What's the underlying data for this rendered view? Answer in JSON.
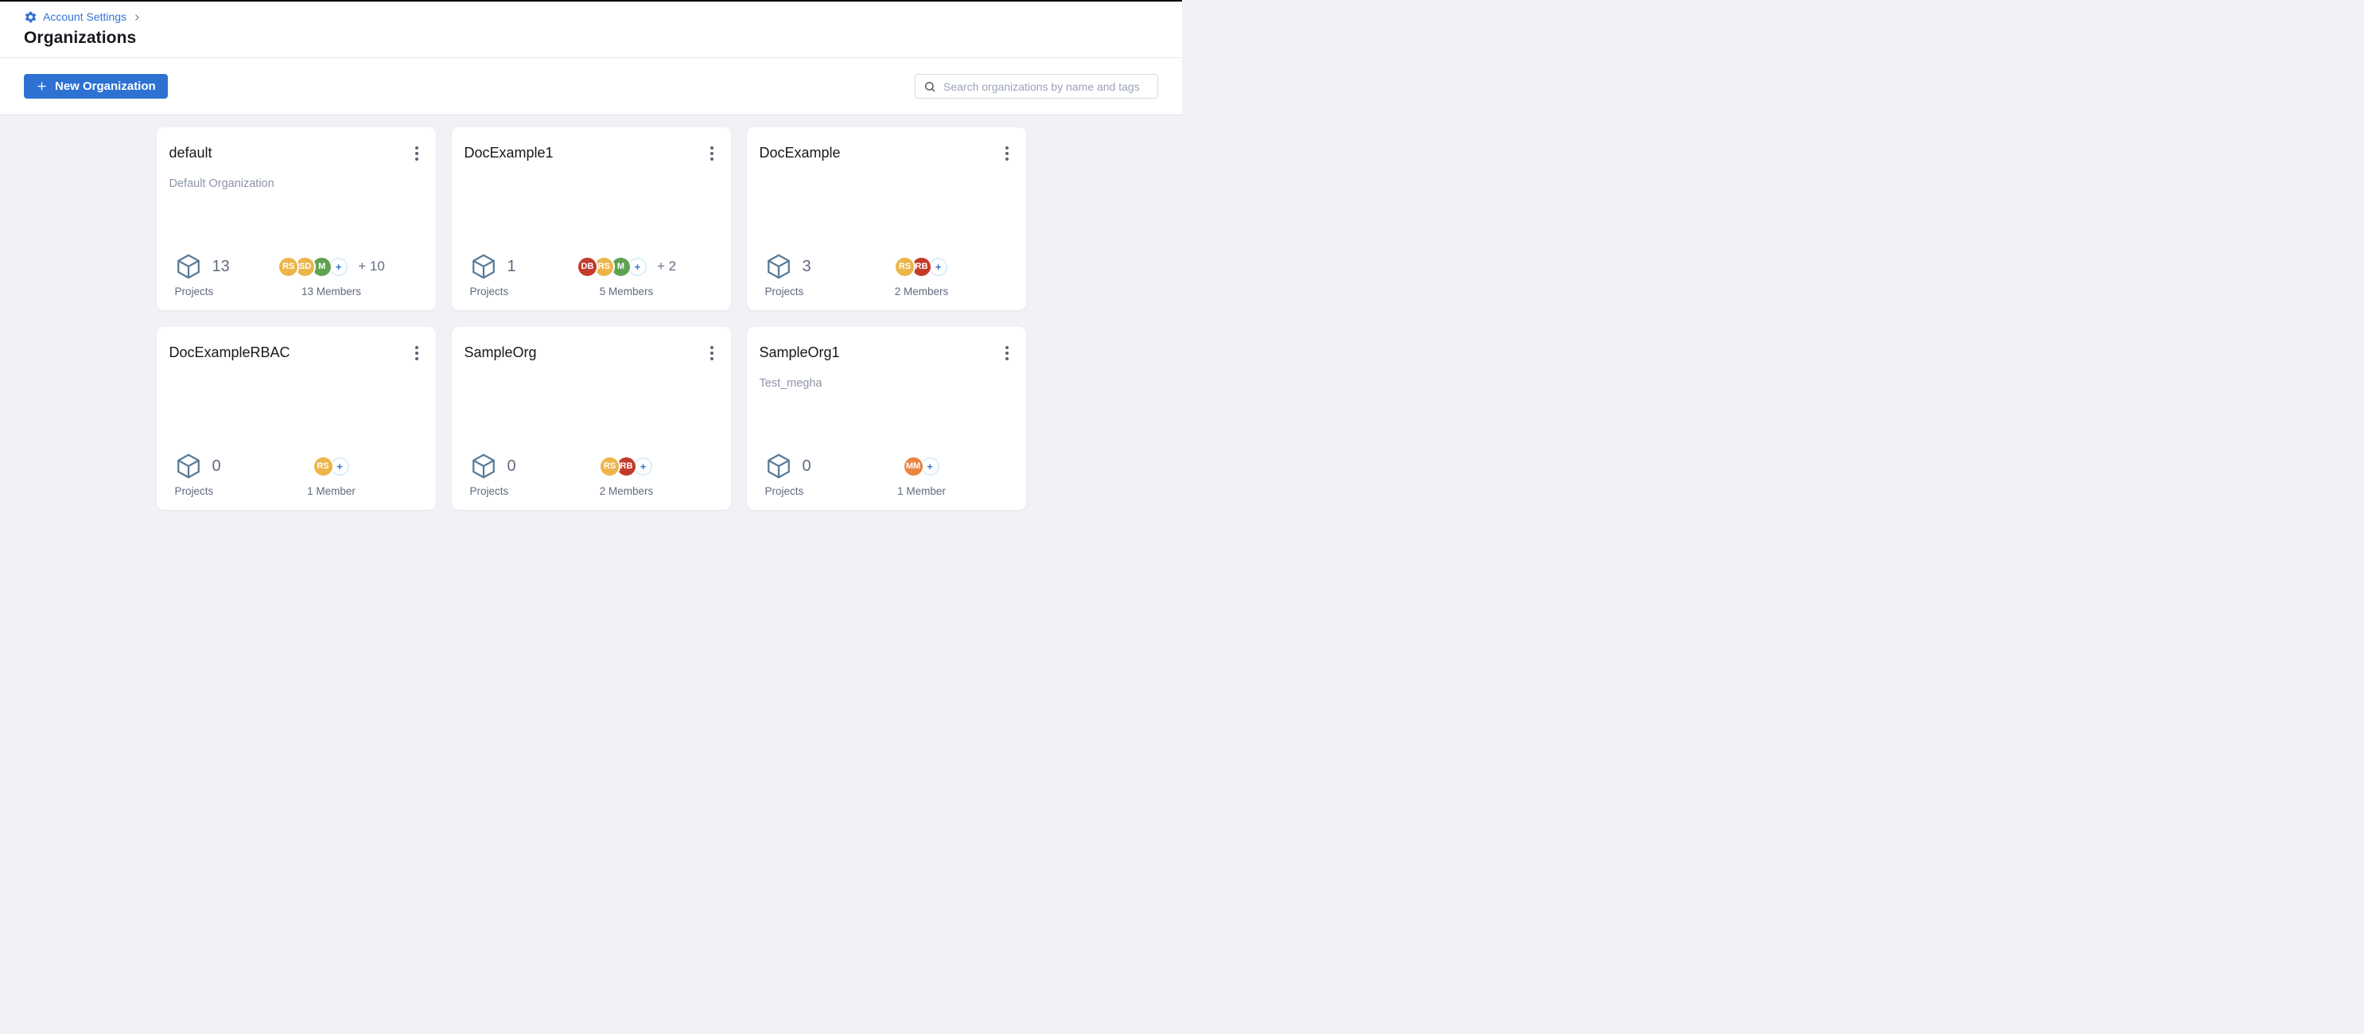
{
  "strings": {
    "breadcrumb_link": "Account Settings",
    "page_title": "Organizations",
    "new_org_button": "New Organization",
    "search_placeholder": "Search organizations by name and tags",
    "projects_label": "Projects",
    "plus_label": "+"
  },
  "colors": {
    "accent_blue": "#2d72d2",
    "link_blue": "#3474d4",
    "avatar_amber": "#ecb54a",
    "avatar_green": "#5fa351",
    "avatar_red": "#c23b2a",
    "avatar_orange": "#ea8440",
    "plus_ring_blue": "#cfe9f9",
    "cube_slate": "#5b7b95",
    "page_background": "#f1f2f6"
  },
  "organizations": [
    {
      "name": "default",
      "description": "Default Organization",
      "projects": "13",
      "members_label": "13 Members",
      "extra": "+ 10",
      "avatars": [
        {
          "initials": "RS",
          "color": "#ecb54a"
        },
        {
          "initials": "SD",
          "color": "#ecb54a"
        },
        {
          "initials": "M",
          "color": "#5fa351"
        }
      ]
    },
    {
      "name": "DocExample1",
      "description": "",
      "projects": "1",
      "members_label": "5 Members",
      "extra": "+ 2",
      "avatars": [
        {
          "initials": "DB",
          "color": "#c23b2a"
        },
        {
          "initials": "RS",
          "color": "#ecb54a"
        },
        {
          "initials": "M",
          "color": "#5fa351"
        }
      ]
    },
    {
      "name": "DocExample",
      "description": "",
      "projects": "3",
      "members_label": "2 Members",
      "extra": "",
      "avatars": [
        {
          "initials": "RS",
          "color": "#ecb54a"
        },
        {
          "initials": "RB",
          "color": "#c23b2a"
        }
      ]
    },
    {
      "name": "DocExampleRBAC",
      "description": "",
      "projects": "0",
      "members_label": "1 Member",
      "extra": "",
      "avatars": [
        {
          "initials": "RS",
          "color": "#ecb54a"
        }
      ]
    },
    {
      "name": "SampleOrg",
      "description": "",
      "projects": "0",
      "members_label": "2 Members",
      "extra": "",
      "avatars": [
        {
          "initials": "RS",
          "color": "#ecb54a"
        },
        {
          "initials": "RB",
          "color": "#c23b2a"
        }
      ]
    },
    {
      "name": "SampleOrg1",
      "description": "Test_megha",
      "projects": "0",
      "members_label": "1 Member",
      "extra": "",
      "avatars": [
        {
          "initials": "MM",
          "color": "#ea8440"
        }
      ]
    }
  ]
}
